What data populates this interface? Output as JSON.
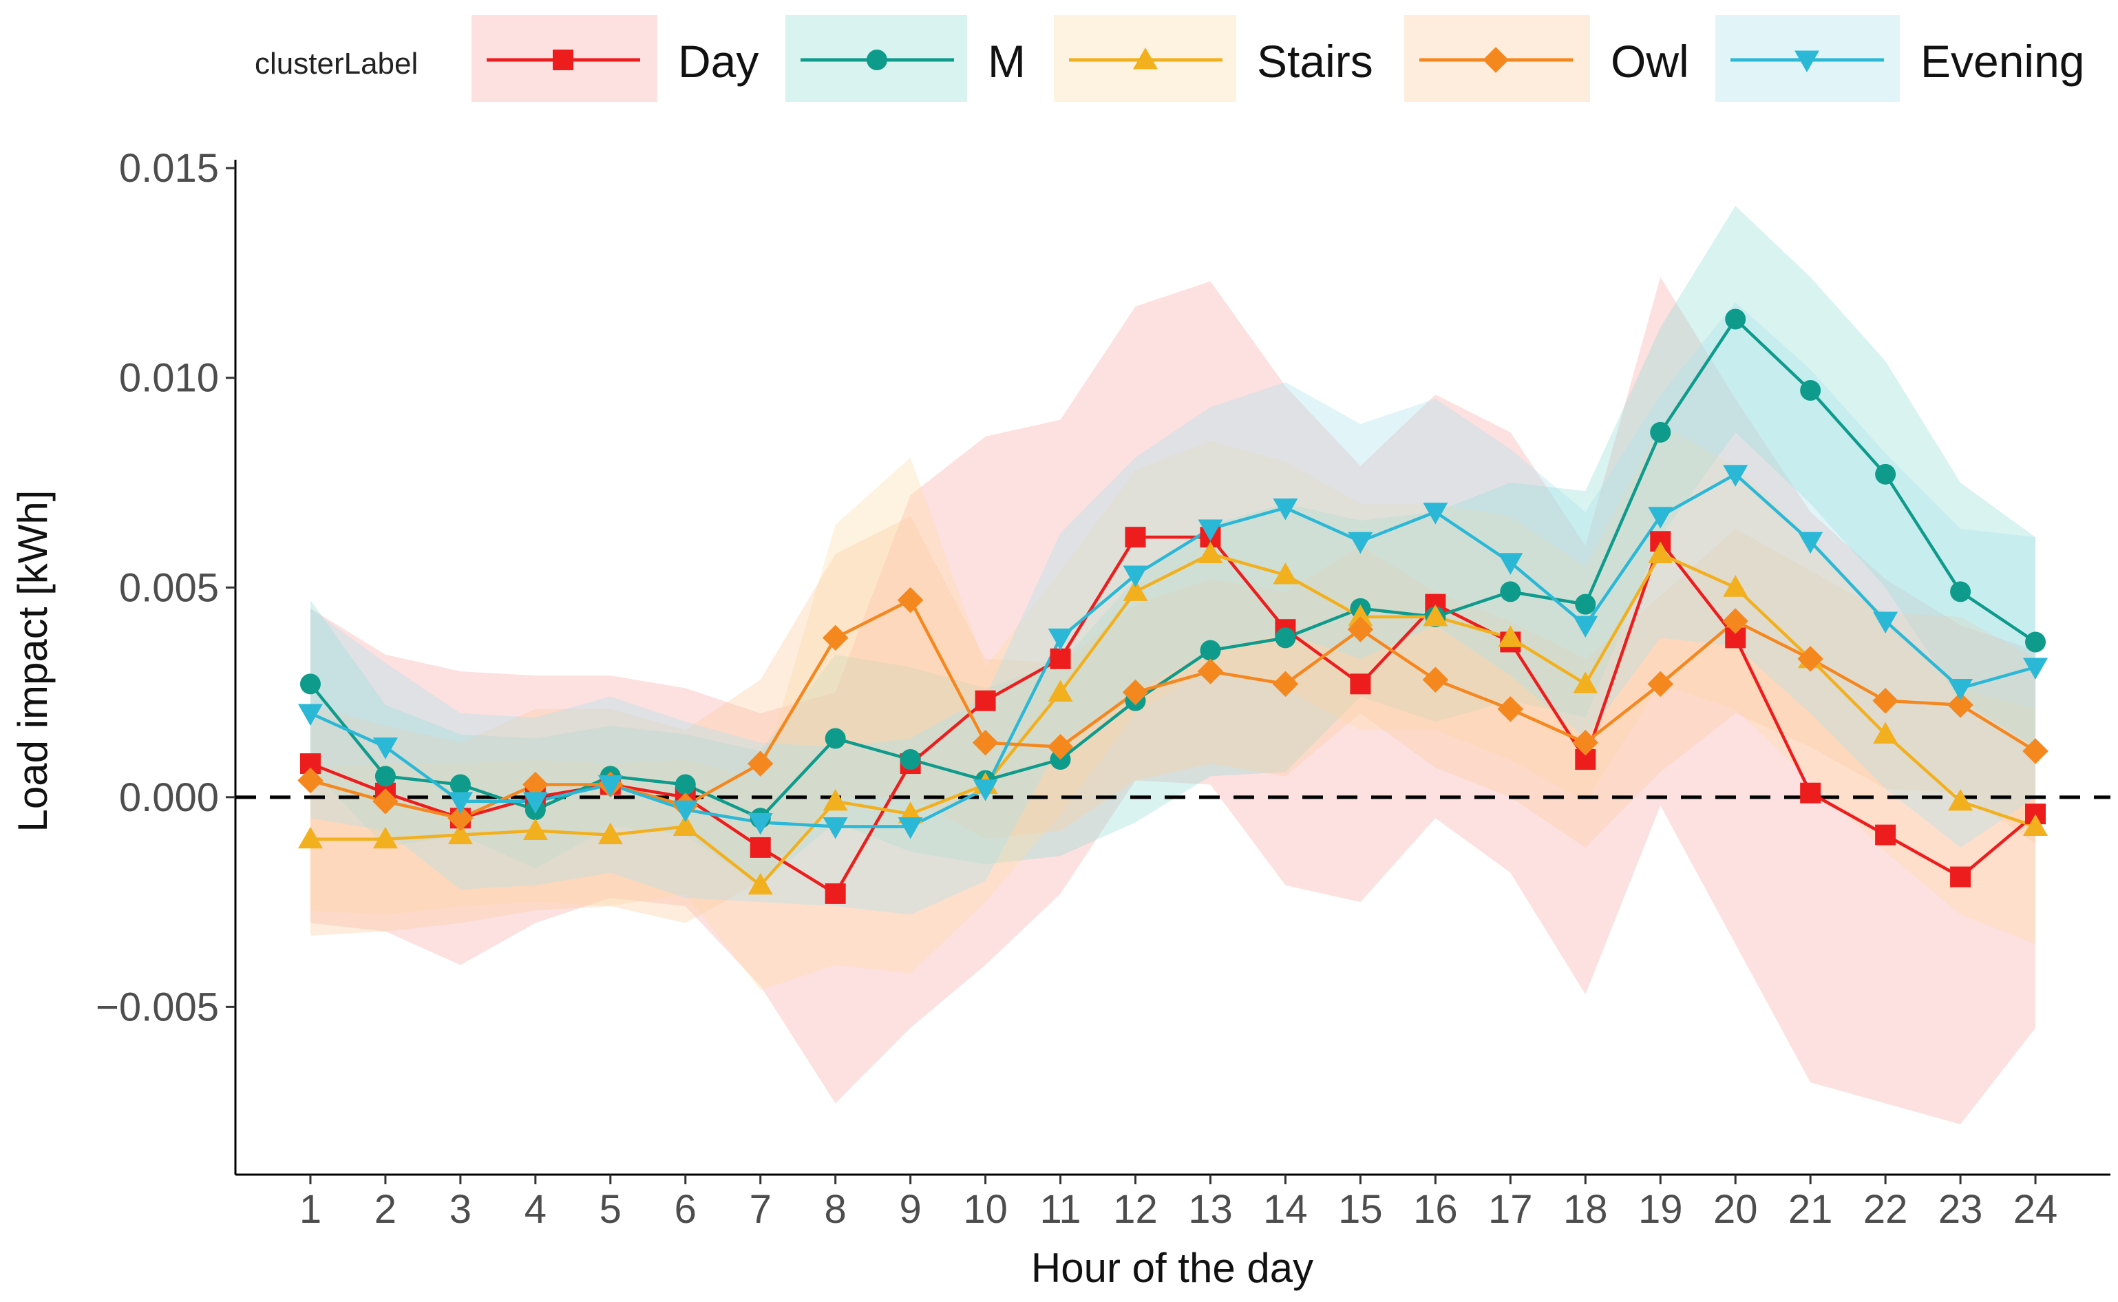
{
  "chart_data": {
    "type": "line",
    "title": "",
    "xlabel": "Hour of the day",
    "ylabel": "Load impact [kWh]",
    "x": [
      1,
      2,
      3,
      4,
      5,
      6,
      7,
      8,
      9,
      10,
      11,
      12,
      13,
      14,
      15,
      16,
      17,
      18,
      19,
      20,
      21,
      22,
      23,
      24
    ],
    "xlim": [
      0,
      25
    ],
    "ylim": [
      -0.009,
      0.0152
    ],
    "yticks": [
      -0.005,
      0.0,
      0.005,
      0.01,
      0.015
    ],
    "ytick_labels": [
      "−0.005",
      "0.000",
      "0.005",
      "0.010",
      "0.015"
    ],
    "reference_line": {
      "y": 0.0,
      "style": "dashed",
      "color": "#000000"
    },
    "legend": {
      "title": "clusterLabel",
      "position": "top"
    },
    "series": [
      {
        "name": "Day",
        "color": "#EE1D1D",
        "fill": "#F8A6A6",
        "marker": "square",
        "values": [
          0.0008,
          0.0001,
          -0.0005,
          0.0,
          0.0003,
          0.0,
          -0.0012,
          -0.0023,
          0.0008,
          0.0023,
          0.0033,
          0.0062,
          0.0062,
          0.004,
          0.0027,
          0.0046,
          0.0037,
          0.0009,
          0.0061,
          0.0038,
          0.0001,
          -0.0009,
          -0.0019,
          -0.0004
        ],
        "upper": [
          0.0045,
          0.0034,
          0.003,
          0.0029,
          0.0029,
          0.0026,
          0.002,
          0.0025,
          0.0072,
          0.0086,
          0.009,
          0.0117,
          0.0123,
          0.0098,
          0.0079,
          0.0096,
          0.0087,
          0.006,
          0.0124,
          0.0095,
          0.0068,
          0.0052,
          0.0041,
          0.0035
        ],
        "lower": [
          -0.003,
          -0.0032,
          -0.004,
          -0.003,
          -0.0024,
          -0.0026,
          -0.0045,
          -0.0073,
          -0.0055,
          -0.004,
          -0.0023,
          0.0004,
          0.0003,
          -0.0021,
          -0.0025,
          -0.0005,
          -0.0018,
          -0.0047,
          -0.0002,
          -0.0035,
          -0.0068,
          -0.0073,
          -0.0078,
          -0.0055
        ]
      },
      {
        "name": "M",
        "color": "#0E9B8C",
        "fill": "#8FDCD3",
        "marker": "circle",
        "values": [
          0.0027,
          0.0005,
          0.0003,
          -0.0003,
          0.0005,
          0.0003,
          -0.0005,
          0.0014,
          0.0009,
          0.0004,
          0.0009,
          0.0023,
          0.0035,
          0.0038,
          0.0045,
          0.0043,
          0.0049,
          0.0046,
          0.0087,
          0.0114,
          0.0097,
          0.0077,
          0.0049,
          0.0037
        ],
        "upper": [
          0.0047,
          0.0022,
          0.0015,
          0.0014,
          0.0017,
          0.0015,
          0.0011,
          0.0034,
          0.0031,
          0.0026,
          0.0032,
          0.0052,
          0.0065,
          0.007,
          0.0066,
          0.0068,
          0.0075,
          0.0073,
          0.0112,
          0.0141,
          0.0124,
          0.0104,
          0.0075,
          0.0062
        ],
        "lower": [
          0.0007,
          -0.0012,
          -0.0009,
          -0.0017,
          -0.0007,
          -0.0009,
          -0.0021,
          -0.0006,
          -0.0013,
          -0.0016,
          -0.0014,
          -0.0006,
          0.0005,
          0.0006,
          0.0024,
          0.0018,
          0.0023,
          0.0019,
          0.0062,
          0.0087,
          0.007,
          0.005,
          0.0023,
          0.0012
        ]
      },
      {
        "name": "Stairs",
        "color": "#F2B01E",
        "fill": "#FBDDA7",
        "marker": "triangle-up",
        "values": [
          -0.001,
          -0.001,
          -0.0009,
          -0.0008,
          -0.0009,
          -0.0007,
          -0.0021,
          -0.0001,
          -0.0004,
          0.0003,
          0.0025,
          0.0049,
          0.0058,
          0.0053,
          0.0043,
          0.0043,
          0.0038,
          0.0027,
          0.0058,
          0.005,
          0.0033,
          0.0015,
          -0.0001,
          -0.0007
        ],
        "upper": [
          0.0007,
          0.0008,
          0.0008,
          0.0009,
          0.0008,
          0.0009,
          0.0004,
          0.0065,
          0.0081,
          0.0031,
          0.0054,
          0.0078,
          0.0085,
          0.008,
          0.007,
          0.007,
          0.0067,
          0.0055,
          0.0089,
          0.0079,
          0.0062,
          0.0043,
          0.0026,
          0.0021
        ],
        "lower": [
          -0.0027,
          -0.0028,
          -0.0026,
          -0.0025,
          -0.0026,
          -0.0023,
          -0.0046,
          -0.004,
          -0.0042,
          -0.0025,
          -0.0004,
          0.002,
          0.0031,
          0.0026,
          0.0016,
          0.0016,
          0.0009,
          -0.0001,
          0.0027,
          0.0021,
          0.0004,
          -0.0013,
          -0.0028,
          -0.0035
        ]
      },
      {
        "name": "Owl",
        "color": "#F5871F",
        "fill": "#FBCB9E",
        "marker": "diamond",
        "values": [
          0.0004,
          -0.0001,
          -0.0005,
          0.0003,
          0.0003,
          -0.0002,
          0.0008,
          0.0038,
          0.0047,
          0.0013,
          0.0012,
          0.0025,
          0.003,
          0.0027,
          0.004,
          0.0028,
          0.0021,
          0.0013,
          0.0027,
          0.0042,
          0.0033,
          0.0023,
          0.0022,
          0.0011
        ],
        "upper": [
          0.0022,
          0.0017,
          0.0013,
          0.0021,
          0.0021,
          0.0016,
          0.0028,
          0.0058,
          0.0067,
          0.0033,
          0.0032,
          0.0046,
          0.0052,
          0.0049,
          0.006,
          0.0049,
          0.0042,
          0.0033,
          0.0048,
          0.0064,
          0.0054,
          0.0044,
          0.0043,
          0.0033
        ],
        "lower": [
          -0.0033,
          -0.0032,
          -0.003,
          -0.0027,
          -0.0026,
          -0.003,
          -0.002,
          0.0,
          0.0,
          -0.001,
          -0.0008,
          0.0004,
          0.0008,
          0.0005,
          0.002,
          0.0007,
          0.0,
          -0.0012,
          0.0006,
          0.002,
          0.0012,
          0.0002,
          0.0001,
          -0.0011
        ]
      },
      {
        "name": "Evening",
        "color": "#2BB8D6",
        "fill": "#A9E1EE",
        "marker": "triangle-down",
        "values": [
          0.002,
          0.0012,
          -0.0001,
          -0.0001,
          0.0003,
          -0.0003,
          -0.0006,
          -0.0007,
          -0.0007,
          0.0002,
          0.0038,
          0.0053,
          0.0064,
          0.0069,
          0.0061,
          0.0068,
          0.0056,
          0.0041,
          0.0067,
          0.0077,
          0.0061,
          0.0042,
          0.0026,
          0.0031
        ],
        "upper": [
          0.0045,
          0.0032,
          0.002,
          0.0019,
          0.0024,
          0.0018,
          0.0013,
          0.0012,
          0.0014,
          0.0024,
          0.0063,
          0.0081,
          0.0093,
          0.0099,
          0.0089,
          0.0095,
          0.0083,
          0.0068,
          0.0096,
          0.0118,
          0.0102,
          0.0082,
          0.0064,
          0.0062
        ],
        "lower": [
          -0.0005,
          -0.0008,
          -0.0022,
          -0.0021,
          -0.0018,
          -0.0024,
          -0.0025,
          -0.0026,
          -0.0028,
          -0.002,
          0.0013,
          0.0025,
          0.0035,
          0.0039,
          0.0033,
          0.0041,
          0.0029,
          0.0014,
          0.0038,
          0.0036,
          0.002,
          0.0002,
          -0.0012,
          0.0
        ]
      }
    ]
  }
}
